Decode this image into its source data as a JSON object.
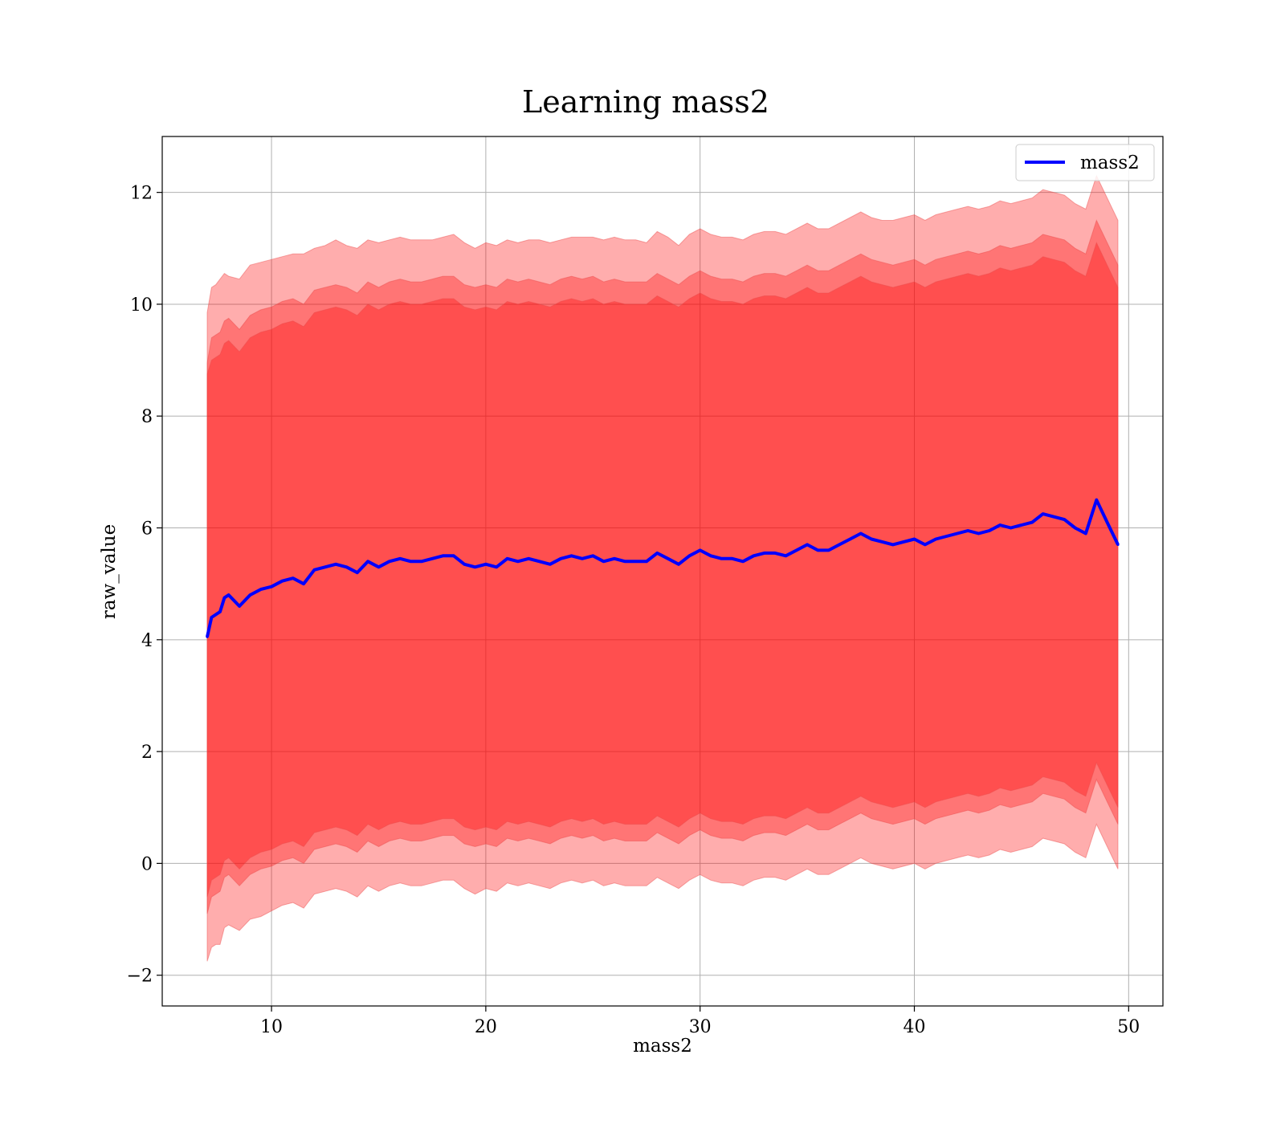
{
  "chart_data": {
    "type": "line",
    "title": "Learning mass2",
    "xlabel": "mass2",
    "ylabel": "raw_value",
    "xlim": [
      4.9,
      51.6
    ],
    "ylim": [
      -2.55,
      13.0
    ],
    "xticks": [
      10,
      20,
      30,
      40,
      50
    ],
    "yticks": [
      -2,
      0,
      2,
      4,
      6,
      8,
      10,
      12
    ],
    "xtick_labels": [
      "10",
      "20",
      "30",
      "40",
      "50"
    ],
    "ytick_labels": [
      "−2",
      "0",
      "2",
      "4",
      "6",
      "8",
      "10",
      "12"
    ],
    "grid": true,
    "legend": {
      "position": "upper right",
      "entries": [
        "mass2"
      ]
    },
    "colors": {
      "line": "#0000ff",
      "band": "#ff0000",
      "band_edge": "#e84a4a",
      "grid": "#b0b0b0"
    },
    "band_opacity": 0.32,
    "series": [
      {
        "name": "mass2",
        "x": [
          7.0,
          7.2,
          7.4,
          7.6,
          7.8,
          8.0,
          8.5,
          9.0,
          9.5,
          10.0,
          10.5,
          11.0,
          11.5,
          12.0,
          12.5,
          13.0,
          13.5,
          14.0,
          14.5,
          15.0,
          15.5,
          16.0,
          16.5,
          17.0,
          17.5,
          18.0,
          18.5,
          19.0,
          19.5,
          20.0,
          20.5,
          21.0,
          21.5,
          22.0,
          22.5,
          23.0,
          23.5,
          24.0,
          24.5,
          25.0,
          25.5,
          26.0,
          26.5,
          27.0,
          27.5,
          28.0,
          28.5,
          29.0,
          29.5,
          30.0,
          30.5,
          31.0,
          31.5,
          32.0,
          32.5,
          33.0,
          33.5,
          34.0,
          34.5,
          35.0,
          35.5,
          36.0,
          36.5,
          37.0,
          37.5,
          38.0,
          38.5,
          39.0,
          39.5,
          40.0,
          40.5,
          41.0,
          41.5,
          42.0,
          42.5,
          43.0,
          43.5,
          44.0,
          44.5,
          45.0,
          45.5,
          46.0,
          46.5,
          47.0,
          47.5,
          48.0,
          48.5,
          49.0,
          49.5
        ],
        "y": [
          4.05,
          4.4,
          4.45,
          4.5,
          4.75,
          4.8,
          4.6,
          4.8,
          4.9,
          4.95,
          5.05,
          5.1,
          5.0,
          5.25,
          5.3,
          5.35,
          5.3,
          5.2,
          5.4,
          5.3,
          5.4,
          5.45,
          5.4,
          5.4,
          5.45,
          5.5,
          5.5,
          5.35,
          5.3,
          5.35,
          5.3,
          5.45,
          5.4,
          5.45,
          5.4,
          5.35,
          5.45,
          5.5,
          5.45,
          5.5,
          5.4,
          5.45,
          5.4,
          5.4,
          5.4,
          5.55,
          5.45,
          5.35,
          5.5,
          5.6,
          5.5,
          5.45,
          5.45,
          5.4,
          5.5,
          5.55,
          5.55,
          5.5,
          5.6,
          5.7,
          5.6,
          5.6,
          5.7,
          5.8,
          5.9,
          5.8,
          5.75,
          5.7,
          5.75,
          5.8,
          5.7,
          5.8,
          5.85,
          5.9,
          5.95,
          5.9,
          5.95,
          6.05,
          6.0,
          6.05,
          6.1,
          6.25,
          6.2,
          6.15,
          6.0,
          5.9,
          6.5,
          6.1,
          5.7
        ],
        "band_3sd": {
          "upper": [
            9.85,
            10.3,
            10.35,
            10.45,
            10.55,
            10.5,
            10.45,
            10.7,
            10.75,
            10.8,
            10.85,
            10.9,
            10.9,
            11.0,
            11.05,
            11.15,
            11.05,
            11.0,
            11.15,
            11.1,
            11.15,
            11.2,
            11.15,
            11.15,
            11.15,
            11.2,
            11.25,
            11.1,
            11.0,
            11.1,
            11.05,
            11.15,
            11.1,
            11.15,
            11.15,
            11.1,
            11.15,
            11.2,
            11.2,
            11.2,
            11.15,
            11.2,
            11.15,
            11.15,
            11.1,
            11.3,
            11.2,
            11.05,
            11.25,
            11.35,
            11.25,
            11.2,
            11.2,
            11.15,
            11.25,
            11.3,
            11.3,
            11.25,
            11.35,
            11.45,
            11.35,
            11.35,
            11.45,
            11.55,
            11.65,
            11.55,
            11.5,
            11.5,
            11.55,
            11.6,
            11.5,
            11.6,
            11.65,
            11.7,
            11.75,
            11.7,
            11.75,
            11.85,
            11.8,
            11.85,
            11.9,
            12.05,
            12.0,
            11.95,
            11.8,
            11.7,
            12.3,
            11.9,
            11.5
          ],
          "lower": [
            -1.75,
            -1.5,
            -1.45,
            -1.45,
            -1.15,
            -1.1,
            -1.2,
            -1.0,
            -0.95,
            -0.85,
            -0.75,
            -0.7,
            -0.8,
            -0.55,
            -0.5,
            -0.45,
            -0.5,
            -0.6,
            -0.4,
            -0.5,
            -0.4,
            -0.35,
            -0.4,
            -0.4,
            -0.35,
            -0.3,
            -0.3,
            -0.45,
            -0.55,
            -0.45,
            -0.5,
            -0.35,
            -0.4,
            -0.35,
            -0.4,
            -0.45,
            -0.35,
            -0.3,
            -0.35,
            -0.3,
            -0.4,
            -0.35,
            -0.4,
            -0.4,
            -0.4,
            -0.25,
            -0.35,
            -0.45,
            -0.3,
            -0.2,
            -0.3,
            -0.35,
            -0.35,
            -0.4,
            -0.3,
            -0.25,
            -0.25,
            -0.3,
            -0.2,
            -0.1,
            -0.2,
            -0.2,
            -0.1,
            0.0,
            0.1,
            0.0,
            -0.05,
            -0.1,
            -0.05,
            0.0,
            -0.1,
            0.0,
            0.05,
            0.1,
            0.15,
            0.1,
            0.15,
            0.25,
            0.2,
            0.25,
            0.3,
            0.45,
            0.4,
            0.35,
            0.2,
            0.1,
            0.7,
            0.3,
            -0.1
          ]
        },
        "band_2sd": {
          "upper": [
            8.95,
            9.4,
            9.45,
            9.5,
            9.7,
            9.75,
            9.55,
            9.8,
            9.9,
            9.95,
            10.05,
            10.1,
            10.0,
            10.25,
            10.3,
            10.35,
            10.3,
            10.2,
            10.4,
            10.3,
            10.4,
            10.45,
            10.4,
            10.4,
            10.45,
            10.5,
            10.5,
            10.35,
            10.3,
            10.35,
            10.3,
            10.45,
            10.4,
            10.45,
            10.4,
            10.35,
            10.45,
            10.5,
            10.45,
            10.5,
            10.4,
            10.45,
            10.4,
            10.4,
            10.4,
            10.55,
            10.45,
            10.35,
            10.5,
            10.6,
            10.5,
            10.45,
            10.45,
            10.4,
            10.5,
            10.55,
            10.55,
            10.5,
            10.6,
            10.7,
            10.6,
            10.6,
            10.7,
            10.8,
            10.9,
            10.8,
            10.75,
            10.7,
            10.75,
            10.8,
            10.7,
            10.8,
            10.85,
            10.9,
            10.95,
            10.9,
            10.95,
            11.05,
            11.0,
            11.05,
            11.1,
            11.25,
            11.2,
            11.15,
            11.0,
            10.9,
            11.5,
            11.1,
            10.7
          ],
          "lower": [
            -0.9,
            -0.6,
            -0.55,
            -0.5,
            -0.25,
            -0.2,
            -0.4,
            -0.2,
            -0.1,
            -0.05,
            0.05,
            0.1,
            0.0,
            0.25,
            0.3,
            0.35,
            0.3,
            0.2,
            0.4,
            0.3,
            0.4,
            0.45,
            0.4,
            0.4,
            0.45,
            0.5,
            0.5,
            0.35,
            0.3,
            0.35,
            0.3,
            0.45,
            0.4,
            0.45,
            0.4,
            0.35,
            0.45,
            0.5,
            0.45,
            0.5,
            0.4,
            0.45,
            0.4,
            0.4,
            0.4,
            0.55,
            0.45,
            0.35,
            0.5,
            0.6,
            0.5,
            0.45,
            0.45,
            0.4,
            0.5,
            0.55,
            0.55,
            0.5,
            0.6,
            0.7,
            0.6,
            0.6,
            0.7,
            0.8,
            0.9,
            0.8,
            0.75,
            0.7,
            0.75,
            0.8,
            0.7,
            0.8,
            0.85,
            0.9,
            0.95,
            0.9,
            0.95,
            1.05,
            1.0,
            1.05,
            1.1,
            1.25,
            1.2,
            1.15,
            1.0,
            0.9,
            1.5,
            1.1,
            0.7
          ]
        },
        "band_1sd": {
          "upper": [
            8.75,
            9.0,
            9.05,
            9.1,
            9.3,
            9.35,
            9.15,
            9.4,
            9.5,
            9.55,
            9.65,
            9.7,
            9.6,
            9.85,
            9.9,
            9.95,
            9.9,
            9.8,
            10.0,
            9.9,
            10.0,
            10.05,
            10.0,
            10.0,
            10.05,
            10.1,
            10.1,
            9.95,
            9.9,
            9.95,
            9.9,
            10.05,
            10.0,
            10.05,
            10.0,
            9.95,
            10.05,
            10.1,
            10.05,
            10.1,
            10.0,
            10.05,
            10.0,
            10.0,
            10.0,
            10.15,
            10.05,
            9.95,
            10.1,
            10.2,
            10.1,
            10.05,
            10.05,
            10.0,
            10.1,
            10.15,
            10.15,
            10.1,
            10.2,
            10.3,
            10.2,
            10.2,
            10.3,
            10.4,
            10.5,
            10.4,
            10.35,
            10.3,
            10.35,
            10.4,
            10.3,
            10.4,
            10.45,
            10.5,
            10.55,
            10.5,
            10.55,
            10.65,
            10.6,
            10.65,
            10.7,
            10.85,
            10.8,
            10.75,
            10.6,
            10.5,
            11.1,
            10.7,
            10.3
          ],
          "lower": [
            -0.6,
            -0.3,
            -0.25,
            -0.2,
            0.05,
            0.1,
            -0.1,
            0.1,
            0.2,
            0.25,
            0.35,
            0.4,
            0.3,
            0.55,
            0.6,
            0.65,
            0.6,
            0.5,
            0.7,
            0.6,
            0.7,
            0.75,
            0.7,
            0.7,
            0.75,
            0.8,
            0.8,
            0.65,
            0.6,
            0.65,
            0.6,
            0.75,
            0.7,
            0.75,
            0.7,
            0.65,
            0.75,
            0.8,
            0.75,
            0.8,
            0.7,
            0.75,
            0.7,
            0.7,
            0.7,
            0.85,
            0.75,
            0.65,
            0.8,
            0.9,
            0.8,
            0.75,
            0.75,
            0.7,
            0.8,
            0.85,
            0.85,
            0.8,
            0.9,
            1.0,
            0.9,
            0.9,
            1.0,
            1.1,
            1.2,
            1.1,
            1.05,
            1.0,
            1.05,
            1.1,
            1.0,
            1.1,
            1.15,
            1.2,
            1.25,
            1.2,
            1.25,
            1.35,
            1.3,
            1.35,
            1.4,
            1.55,
            1.5,
            1.45,
            1.3,
            1.2,
            1.8,
            1.4,
            1.0
          ]
        }
      }
    ]
  }
}
